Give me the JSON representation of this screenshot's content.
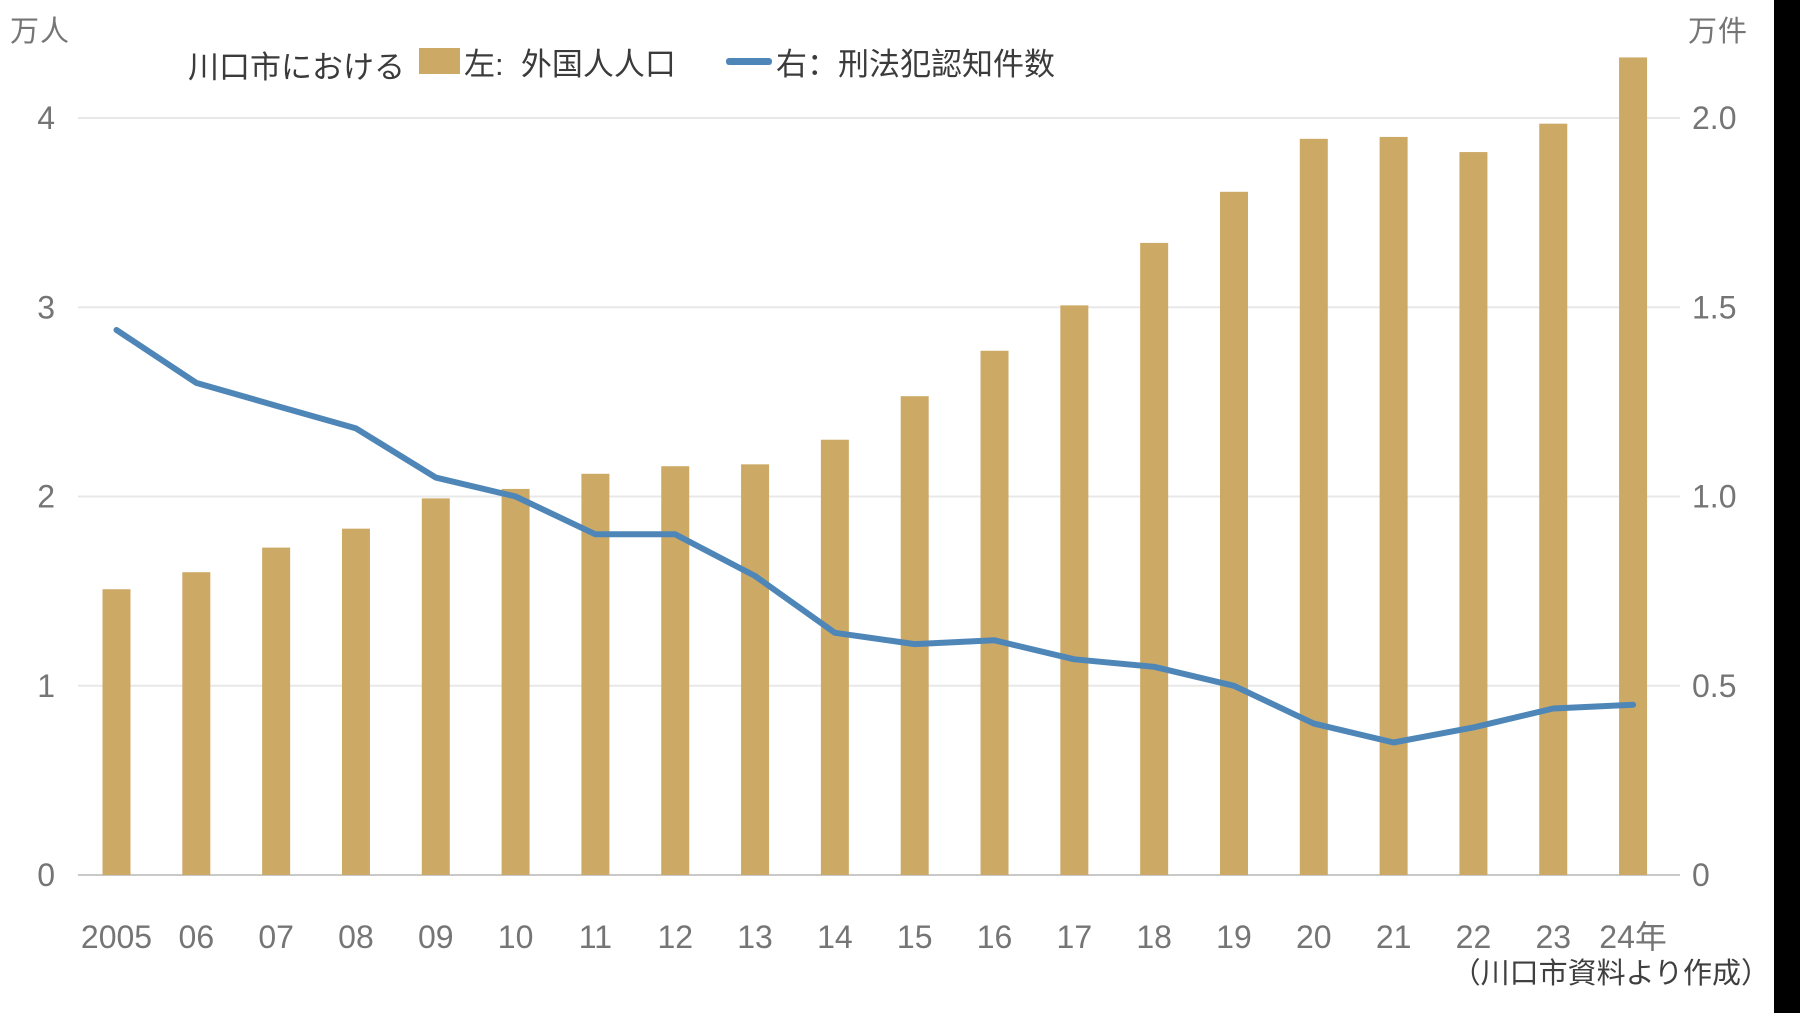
{
  "units": {
    "left": "万人",
    "right": "万件"
  },
  "title": "川口市における",
  "legend": {
    "bar_label": "左:  外国人人口",
    "line_label": "右：刑法犯認知件数"
  },
  "footnote": "（川口市資料より作成）",
  "colors": {
    "bar": "#CDA966",
    "line": "#4F86B8",
    "grid": "#E8E8E8",
    "baseline": "#C9C9C9",
    "axis_text": "#757575",
    "edge_strip": "#000000"
  },
  "chart_data": {
    "type": "bar+line",
    "title": "川口市における 外国人人口と刑法犯認知件数",
    "categories": [
      "2005",
      "06",
      "07",
      "08",
      "09",
      "10",
      "11",
      "12",
      "13",
      "14",
      "15",
      "16",
      "17",
      "18",
      "19",
      "20",
      "21",
      "22",
      "23",
      "24年"
    ],
    "series": [
      {
        "name": "外国人人口",
        "type": "bar",
        "axis": "left",
        "unit": "万人",
        "values": [
          1.51,
          1.6,
          1.73,
          1.83,
          1.99,
          2.04,
          2.12,
          2.16,
          2.17,
          2.3,
          2.53,
          2.77,
          3.01,
          3.34,
          3.61,
          3.89,
          3.9,
          3.82,
          3.97,
          4.32
        ]
      },
      {
        "name": "刑法犯認知件数",
        "type": "line",
        "axis": "right",
        "unit": "万件",
        "values": [
          1.44,
          1.3,
          1.24,
          1.18,
          1.05,
          1.0,
          0.9,
          0.9,
          0.79,
          0.64,
          0.61,
          0.62,
          0.57,
          0.55,
          0.5,
          0.4,
          0.35,
          0.39,
          0.44,
          0.45
        ]
      }
    ],
    "left_axis": {
      "label": "万人",
      "ticks": [
        0,
        1,
        2,
        3,
        4
      ],
      "range": [
        0,
        4.6
      ]
    },
    "right_axis": {
      "label": "万件",
      "ticks": [
        "0",
        "0.5",
        "1.0",
        "1.5",
        "2.0"
      ],
      "tick_values": [
        0,
        0.5,
        1.0,
        1.5,
        2.0
      ],
      "range": [
        0,
        2.3
      ]
    },
    "grid": true,
    "legend_position": "top"
  }
}
